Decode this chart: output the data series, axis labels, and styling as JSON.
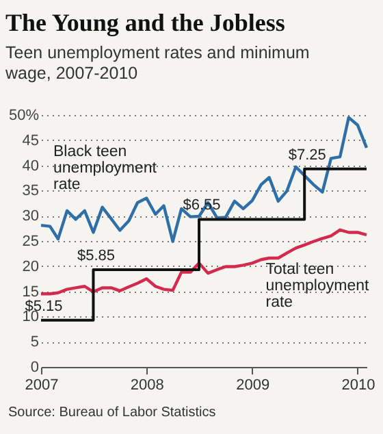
{
  "chart_data": {
    "type": "line",
    "title": "The Young and the Jobless",
    "subtitle": "Teen unemployment rates and minimum wage, 2007-2010",
    "x": [
      "2007-01",
      "2007-02",
      "2007-03",
      "2007-04",
      "2007-05",
      "2007-06",
      "2007-07",
      "2007-08",
      "2007-09",
      "2007-10",
      "2007-11",
      "2007-12",
      "2008-01",
      "2008-02",
      "2008-03",
      "2008-04",
      "2008-05",
      "2008-06",
      "2008-07",
      "2008-08",
      "2008-09",
      "2008-10",
      "2008-11",
      "2008-12",
      "2009-01",
      "2009-02",
      "2009-03",
      "2009-04",
      "2009-05",
      "2009-06",
      "2009-07",
      "2009-08",
      "2009-09",
      "2009-10",
      "2009-11",
      "2009-12",
      "2010-01",
      "2010-02"
    ],
    "series": [
      {
        "name": "Black teen unemployment rate",
        "color": "#2f6fa8",
        "values": [
          28.1,
          27.9,
          25.4,
          31,
          29.3,
          31,
          26.7,
          31.7,
          29.4,
          27.1,
          29,
          32.6,
          33.5,
          30.3,
          32,
          24.9,
          31.4,
          29.8,
          29.9,
          32.6,
          29.6,
          29.7,
          32.9,
          31.4,
          33,
          36.2,
          37.6,
          32.9,
          34.9,
          39.7,
          38,
          36.2,
          34.7,
          41.4,
          41.7,
          49.5,
          48,
          43.5
        ]
      },
      {
        "name": "Total teen unemployment rate",
        "color": "#d42a4e",
        "values": [
          14.5,
          14.5,
          14.7,
          15.4,
          15.7,
          16,
          14.9,
          15.7,
          15.7,
          15.1,
          15.9,
          16.6,
          17.5,
          16,
          15.4,
          15.2,
          18.8,
          18.8,
          20.6,
          18.6,
          19.3,
          19.9,
          19.9,
          20.2,
          20.6,
          21.3,
          21.6,
          21.6,
          22.6,
          23.6,
          24.2,
          24.9,
          25.5,
          26,
          27.2,
          26.7,
          26.7,
          26.2
        ]
      },
      {
        "type": "step",
        "axis": "y2",
        "color": "#111111",
        "x": [
          "2007-01",
          "2007-07",
          "2008-07",
          "2009-07",
          "2010-02"
        ],
        "values": [
          5.15,
          5.85,
          6.55,
          7.25,
          7.25
        ],
        "value_labels": [
          "$5.15",
          "$5.85",
          "$6.55",
          "$7.25",
          null
        ]
      }
    ],
    "xlim": [
      "2007-01",
      "2010-02"
    ],
    "xticks": [
      {
        "value": "2007-01",
        "label": "2007"
      },
      {
        "value": "2008-01",
        "label": "2008"
      },
      {
        "value": "2009-01",
        "label": "2009"
      },
      {
        "value": "2010-01",
        "label": "2010"
      }
    ],
    "ylim": [
      0,
      50
    ],
    "yticks": [
      0,
      5,
      10,
      15,
      20,
      25,
      30,
      35,
      40,
      45,
      {
        "value": 50,
        "label": "50%"
      }
    ],
    "y2lim": [
      4.5,
      8.0
    ],
    "grid": "y",
    "annotations": [
      "Source: Bureau of Labor Statistics"
    ]
  }
}
